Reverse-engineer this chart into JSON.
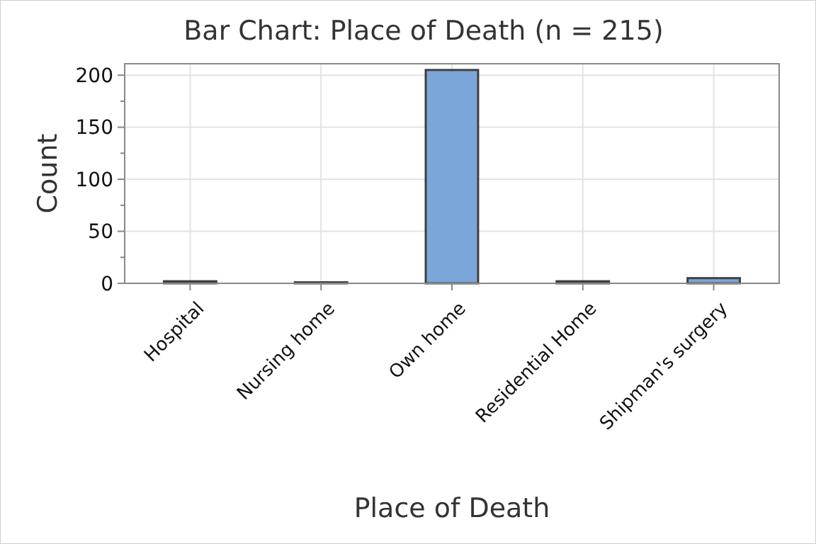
{
  "chart_data": {
    "type": "bar",
    "title": "Bar Chart: Place of Death (n = 215)",
    "xlabel": "Place of Death",
    "ylabel": "Count",
    "categories": [
      "Hospital",
      "Nursing home",
      "Own home",
      "Residential Home",
      "Shipman's surgery"
    ],
    "values": [
      2,
      1,
      205,
      2,
      5
    ],
    "color": "#7ba6d9",
    "ylim": [
      0,
      211
    ],
    "yticks": [
      0,
      {
        "value": 25,
        "label": null
      },
      50,
      {
        "value": 75,
        "label": null
      },
      100,
      {
        "value": 125,
        "label": null
      },
      150,
      {
        "value": 175,
        "label": null
      },
      200
    ],
    "grid": true
  }
}
